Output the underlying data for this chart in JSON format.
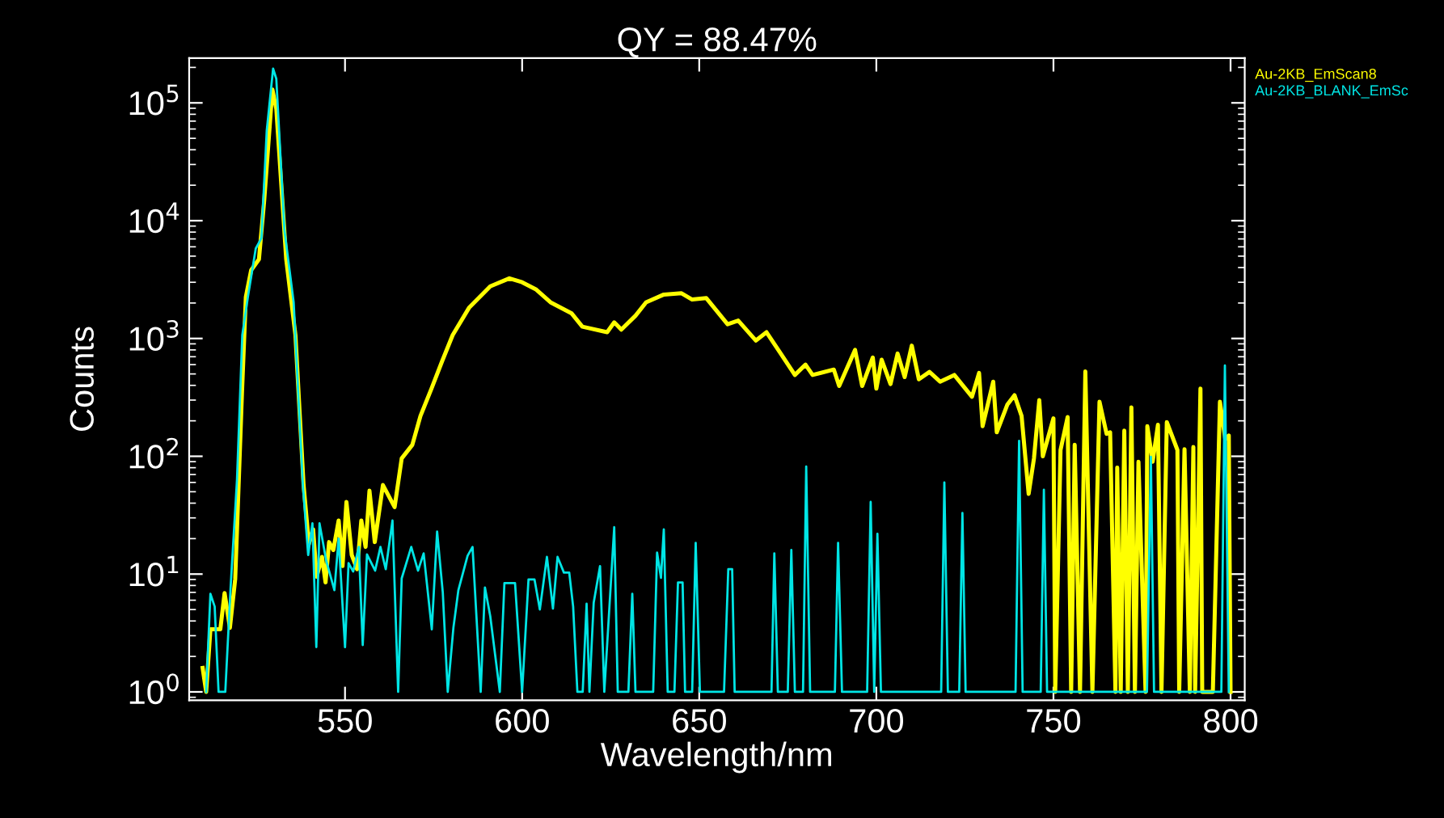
{
  "chart_data": {
    "type": "line",
    "title": "QY = 88.47%",
    "xlabel": "Wavelength/nm",
    "ylabel": "Counts",
    "log": "y",
    "xlim": [
      506,
      804
    ],
    "ylim": [
      0.85,
      240000
    ],
    "xticks": [
      550,
      600,
      650,
      700,
      750,
      800
    ],
    "yticks": [
      {
        "value": 1,
        "label": "10$^{0}$"
      },
      {
        "value": 10,
        "label": "10$^{1}$"
      },
      {
        "value": 100,
        "label": "10$^{2}$"
      },
      {
        "value": 1000,
        "label": "10$^{3}$"
      },
      {
        "value": 10000,
        "label": "10$^{4}$"
      },
      {
        "value": 100000,
        "label": "10$^{5}$"
      }
    ],
    "tick_labels": true,
    "legend": "top right",
    "series": [
      {
        "name": "Au-2KB_EmScan8",
        "color": "#ffff00",
        "x": [
          509.8,
          510.8,
          512,
          514.8,
          516,
          517.5,
          519,
          520.9,
          522,
          523.5,
          525.7,
          527.2,
          529.5,
          530.6,
          533.4,
          536,
          538.3,
          539.8,
          541,
          542,
          543.5,
          544.5,
          545.5,
          546.7,
          548.2,
          549.3,
          550.4,
          551.9,
          553.4,
          554.6,
          555.8,
          556.9,
          558.4,
          560.7,
          564,
          566,
          569,
          571.3,
          574.4,
          577.4,
          580.4,
          585,
          591,
          596.4,
          600,
          604,
          608,
          614,
          617,
          624,
          626,
          628,
          632,
          635,
          640,
          645,
          648,
          652,
          658,
          661,
          666,
          669,
          673,
          677,
          680,
          682,
          688,
          689.5,
          694,
          696,
          699,
          700,
          701.5,
          704,
          706,
          708,
          710,
          712,
          715,
          718,
          722,
          727,
          729,
          730,
          733,
          734,
          737,
          739,
          741,
          743,
          744.5,
          746,
          747,
          750,
          750.5,
          752,
          754,
          755,
          756,
          757.5,
          759,
          761,
          763,
          765,
          766,
          767.5,
          768,
          769,
          770,
          771,
          772,
          773,
          774,
          776,
          776.5,
          778,
          779.5,
          780.5,
          782,
          785,
          785.5,
          787,
          788.5,
          789.5,
          790,
          791.5,
          792,
          795,
          797,
          798.5,
          799.5,
          800
        ],
        "values": [
          1.6,
          1,
          3.4,
          3.4,
          6.9,
          3.5,
          9.1,
          340,
          2250,
          3800,
          4700,
          15000,
          130000,
          89000,
          4700,
          1070,
          57,
          18,
          24,
          9.5,
          14,
          8.5,
          18.7,
          16,
          28.5,
          11.7,
          41,
          14.5,
          11,
          28.5,
          17,
          51,
          18.7,
          57,
          37,
          96,
          125,
          220,
          375,
          640,
          1070,
          1820,
          2770,
          3240,
          3000,
          2600,
          2030,
          1630,
          1260,
          1130,
          1370,
          1190,
          1560,
          2030,
          2360,
          2420,
          2140,
          2200,
          1320,
          1420,
          960,
          1130,
          745,
          490,
          600,
          490,
          545,
          395,
          800,
          395,
          690,
          375,
          660,
          410,
          745,
          470,
          870,
          450,
          520,
          430,
          490,
          320,
          510,
          180,
          430,
          160,
          275,
          330,
          220,
          48,
          96,
          300,
          100,
          210,
          1,
          113,
          215,
          1,
          125,
          1,
          525,
          1,
          290,
          155,
          160,
          1,
          80,
          1,
          165,
          1,
          260,
          1,
          90,
          1,
          180,
          90,
          185,
          1,
          195,
          113,
          1,
          115,
          1,
          120,
          1,
          375,
          1,
          1,
          290,
          140,
          150,
          1
        ]
      },
      {
        "name": "Au-2KB_BLANK_EmSc",
        "color": "#00e5e5",
        "x": [
          510.8,
          512,
          513.2,
          514.3,
          516.2,
          517.7,
          519.5,
          521,
          522.6,
          524.8,
          526.4,
          527.9,
          529.7,
          530.6,
          532.9,
          535.5,
          538.1,
          539.6,
          540.8,
          541.9,
          542.8,
          544.7,
          547,
          548.2,
          550,
          551,
          552.3,
          553.9,
          555,
          556.2,
          558.5,
          560,
          561.5,
          563.4,
          565,
          566,
          568.7,
          570.6,
          572.2,
          574.5,
          576,
          577.6,
          579,
          580.6,
          582,
          584.6,
          586,
          588.3,
          589.5,
          591,
          593.7,
          595,
          598,
          600,
          601.8,
          603.5,
          605,
          607,
          608.7,
          610,
          611.8,
          613.3,
          614.4,
          615.6,
          617.1,
          618.2,
          619,
          620.2,
          622,
          623.2,
          626,
          627,
          630,
          631.1,
          632,
          637,
          638.1,
          639.2,
          640,
          641.1,
          643,
          644,
          645.3,
          646,
          648,
          649,
          650.2,
          657,
          658.2,
          659.3,
          660,
          670.4,
          671.2,
          672.2,
          675,
          676,
          677,
          679.3,
          680.2,
          681.3,
          688.3,
          689.2,
          690.3,
          697.4,
          698.4,
          699.4,
          700.3,
          701.3,
          718.3,
          719.2,
          720.2,
          723.4,
          724.3,
          725.2,
          739.3,
          740.3,
          741.3,
          746.4,
          747.3,
          748.2,
          776.4,
          777.5,
          778.4,
          797.4,
          798.4,
          799.5
        ],
        "values": [
          1,
          6.8,
          5.3,
          1,
          1,
          7.7,
          63,
          1070,
          2270,
          5800,
          7100,
          58000,
          195000,
          160000,
          8300,
          2030,
          57,
          14.5,
          27,
          2.4,
          27,
          13,
          7.3,
          20,
          2.4,
          12.4,
          10.5,
          17,
          2.5,
          14.7,
          10.7,
          17,
          11,
          28.5,
          1,
          9.2,
          17,
          10.7,
          15,
          3.4,
          23,
          7,
          1,
          3.5,
          7.3,
          14.3,
          17,
          1,
          7.7,
          4.4,
          1,
          8.4,
          8.4,
          1,
          9,
          9,
          5,
          14,
          5.1,
          14,
          10.3,
          10.3,
          5.3,
          1,
          1,
          5.6,
          1,
          5.7,
          11.7,
          1,
          25,
          1,
          1,
          6.8,
          1,
          1,
          15.2,
          9.3,
          24,
          1,
          1,
          8.5,
          8.5,
          1,
          1,
          18.4,
          1,
          1,
          11,
          11,
          1,
          1,
          15,
          1,
          1,
          16,
          1,
          1,
          82,
          1,
          1,
          18.4,
          1,
          1,
          41,
          1,
          22,
          1,
          1,
          60,
          1,
          1,
          33,
          1,
          1,
          135,
          1,
          1,
          52,
          1,
          1,
          99,
          1,
          1,
          590,
          1
        ]
      }
    ]
  }
}
